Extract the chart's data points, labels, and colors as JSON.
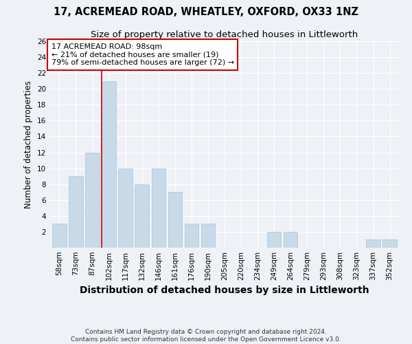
{
  "title": "17, ACREMEAD ROAD, WHEATLEY, OXFORD, OX33 1NZ",
  "subtitle": "Size of property relative to detached houses in Littleworth",
  "xlabel": "Distribution of detached houses by size in Littleworth",
  "ylabel": "Number of detached properties",
  "categories": [
    "58sqm",
    "73sqm",
    "87sqm",
    "102sqm",
    "117sqm",
    "132sqm",
    "146sqm",
    "161sqm",
    "176sqm",
    "190sqm",
    "205sqm",
    "220sqm",
    "234sqm",
    "249sqm",
    "264sqm",
    "279sqm",
    "293sqm",
    "308sqm",
    "323sqm",
    "337sqm",
    "352sqm"
  ],
  "values": [
    3,
    9,
    12,
    21,
    10,
    8,
    10,
    7,
    3,
    3,
    0,
    0,
    0,
    2,
    2,
    0,
    0,
    0,
    0,
    1,
    1
  ],
  "bar_color": "#c8d9e8",
  "bar_edge_color": "#a8c4d8",
  "highlight_index": 3,
  "highlight_line_color": "#cc0000",
  "annotation_box_color": "#ffffff",
  "annotation_border_color": "#cc0000",
  "annotation_text_line1": "17 ACREMEAD ROAD: 98sqm",
  "annotation_text_line2": "← 21% of detached houses are smaller (19)",
  "annotation_text_line3": "79% of semi-detached houses are larger (72) →",
  "ylim": [
    0,
    26
  ],
  "yticks": [
    0,
    2,
    4,
    6,
    8,
    10,
    12,
    14,
    16,
    18,
    20,
    22,
    24,
    26
  ],
  "footer_line1": "Contains HM Land Registry data © Crown copyright and database right 2024.",
  "footer_line2": "Contains public sector information licensed under the Open Government Licence v3.0.",
  "background_color": "#eef2f7",
  "grid_color": "#ffffff",
  "title_fontsize": 10.5,
  "subtitle_fontsize": 9.5,
  "xlabel_fontsize": 10,
  "ylabel_fontsize": 8.5,
  "tick_fontsize": 7.5,
  "annotation_fontsize": 8,
  "footer_fontsize": 6.5
}
